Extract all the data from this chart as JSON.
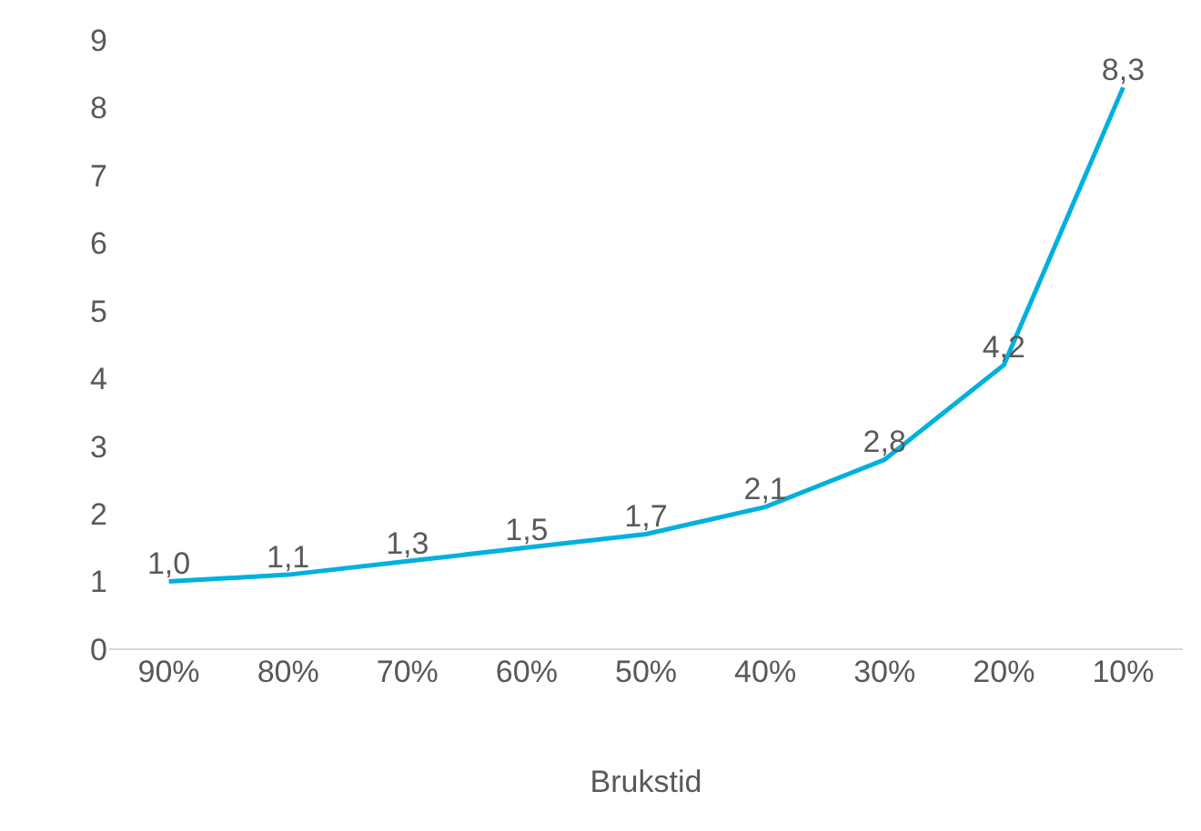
{
  "chart_data": {
    "type": "line",
    "xlabel": "Brukstid",
    "categories": [
      "90%",
      "80%",
      "70%",
      "60%",
      "50%",
      "40%",
      "30%",
      "20%",
      "10%"
    ],
    "values": [
      1.0,
      1.1,
      1.3,
      1.5,
      1.7,
      2.1,
      2.8,
      4.2,
      8.3
    ],
    "value_labels": [
      "1,0",
      "1,1",
      "1,3",
      "1,5",
      "1,7",
      "2,1",
      "2,8",
      "4,2",
      "8,3"
    ],
    "color": "#00b0de",
    "marker": "none",
    "line_style": "solid",
    "grid": false,
    "legend": false,
    "ylim": [
      0,
      9
    ],
    "yticks": [
      0,
      1,
      2,
      3,
      4,
      5,
      6,
      7,
      8,
      9
    ]
  }
}
